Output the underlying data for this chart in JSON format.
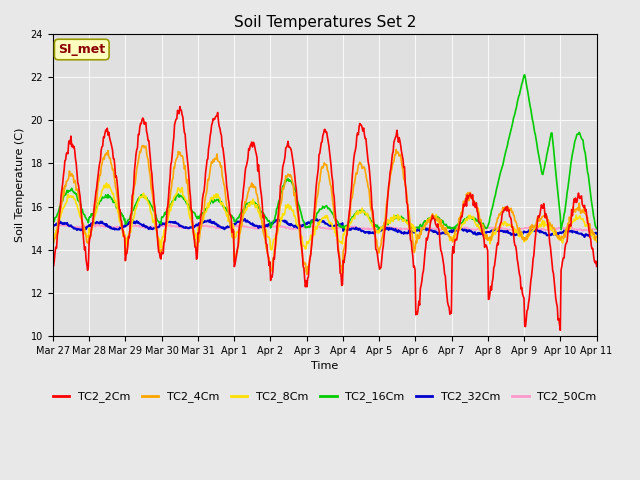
{
  "title": "Soil Temperatures Set 2",
  "xlabel": "Time",
  "ylabel": "Soil Temperature (C)",
  "ylim": [
    10,
    24
  ],
  "yticks": [
    10,
    12,
    14,
    16,
    18,
    20,
    22,
    24
  ],
  "annotation_text": "SI_met",
  "annotation_box_color": "#FFFFC0",
  "annotation_text_color": "#8B0000",
  "annotation_edge_color": "#999900",
  "fig_facecolor": "#E8E8E8",
  "plot_facecolor": "#E0E0E0",
  "grid_color": "#FFFFFF",
  "colors": {
    "TC2_2Cm": "#FF0000",
    "TC2_4Cm": "#FFA500",
    "TC2_8Cm": "#FFE000",
    "TC2_16Cm": "#00CC00",
    "TC2_32Cm": "#0000CC",
    "TC2_50Cm": "#FF99CC"
  },
  "xtick_labels": [
    "Mar 27",
    "Mar 28",
    "Mar 29",
    "Mar 30",
    "Mar 31",
    "Apr 1",
    "Apr 2",
    "Apr 3",
    "Apr 4",
    "Apr 5",
    "Apr 6",
    "Apr 7",
    "Apr 8",
    "Apr 9",
    "Apr 10",
    "Apr 11"
  ],
  "linewidth": 1.2,
  "figsize": [
    6.4,
    4.8
  ],
  "dpi": 100
}
